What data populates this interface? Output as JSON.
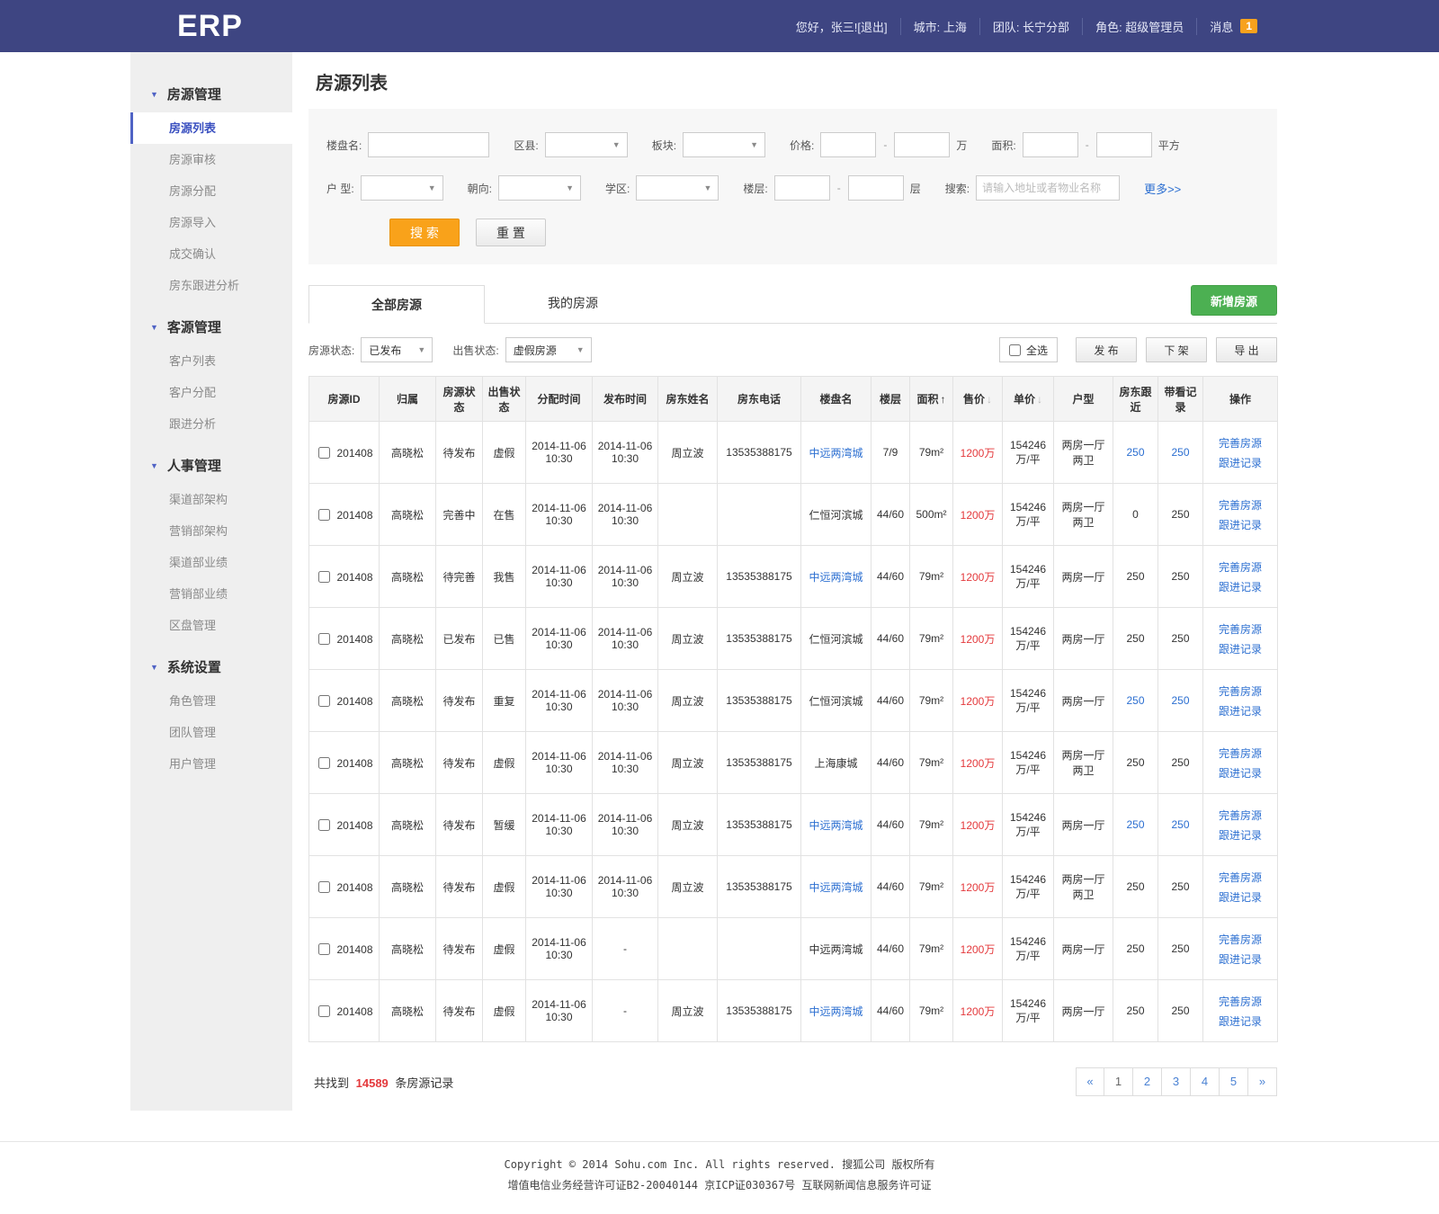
{
  "colors": {
    "navbar_bg": "#3e4582",
    "accent_orange": "#f8a21d",
    "accent_green": "#4cb052",
    "link_blue": "#2c6fd1",
    "price_red": "#e4393c",
    "sidebar_bg": "#efefef"
  },
  "navbar": {
    "logo": "ERP",
    "greeting": "您好，张三![退出]",
    "city": "城市: 上海",
    "team": "团队: 长宁分部",
    "role": "角色: 超级管理员",
    "message_label": "消息",
    "message_count": "1"
  },
  "sidebar": {
    "sections": [
      {
        "title": "房源管理",
        "items": [
          {
            "label": "房源列表",
            "active": true
          },
          {
            "label": "房源审核"
          },
          {
            "label": "房源分配"
          },
          {
            "label": "房源导入"
          },
          {
            "label": "成交确认"
          },
          {
            "label": "房东跟进分析"
          }
        ]
      },
      {
        "title": "客源管理",
        "items": [
          {
            "label": "客户列表"
          },
          {
            "label": "客户分配"
          },
          {
            "label": "跟进分析"
          }
        ]
      },
      {
        "title": "人事管理",
        "items": [
          {
            "label": "渠道部架构"
          },
          {
            "label": "营销部架构"
          },
          {
            "label": "渠道部业绩"
          },
          {
            "label": "营销部业绩"
          },
          {
            "label": "区盘管理"
          }
        ]
      },
      {
        "title": "系统设置",
        "items": [
          {
            "label": "角色管理"
          },
          {
            "label": "团队管理"
          },
          {
            "label": "用户管理"
          }
        ]
      }
    ]
  },
  "page_title": "房源列表",
  "search": {
    "range_sep": "-",
    "row1": {
      "building_label": "楼盘名:",
      "district_label": "区县:",
      "block_label": "板块:",
      "price_label": "价格:",
      "price_unit": "万",
      "area_label": "面积:",
      "area_unit": "平方"
    },
    "row2": {
      "layout_label": "户 型:",
      "orientation_label": "朝向:",
      "school_label": "学区:",
      "floor_label": "楼层:",
      "floor_unit": "层",
      "keyword_label": "搜索:",
      "keyword_placeholder": "请输入地址或者物业名称",
      "more_link": "更多>>"
    },
    "search_button": "搜 索",
    "reset_button": "重 置"
  },
  "tabs": [
    {
      "label": "全部房源",
      "active": true
    },
    {
      "label": "我的房源",
      "active": false
    }
  ],
  "add_button": "新增房源",
  "filters": {
    "status_label": "房源状态:",
    "status_value": "已发布",
    "sale_label": "出售状态:",
    "sale_value": "虚假房源",
    "select_all": "全选",
    "publish_button": "发 布",
    "offline_button": "下 架",
    "export_button": "导 出"
  },
  "table": {
    "headers": [
      {
        "label": "房源ID"
      },
      {
        "label": "归属"
      },
      {
        "label": "房源状态"
      },
      {
        "label": "出售状态"
      },
      {
        "label": "分配时间"
      },
      {
        "label": "发布时间"
      },
      {
        "label": "房东姓名"
      },
      {
        "label": "房东电话"
      },
      {
        "label": "楼盘名"
      },
      {
        "label": "楼层"
      },
      {
        "label": "面积",
        "sort": "up"
      },
      {
        "label": "售价",
        "sort": "down"
      },
      {
        "label": "单价",
        "sort": "down"
      },
      {
        "label": "户型"
      },
      {
        "label": "房东跟近"
      },
      {
        "label": "带看记录"
      },
      {
        "label": "操作"
      }
    ],
    "action_links": [
      "完善房源",
      "跟进记录"
    ],
    "rows": [
      {
        "id": "201408",
        "owner": "高晓松",
        "status": "待发布",
        "sale_status": "虚假",
        "assign_time": "2014-11-06\n10:30",
        "publish_time": "2014-11-06\n10:30",
        "landlord": "周立波",
        "phone": "13535388175",
        "building": "中远两湾城",
        "building_link": true,
        "floor": "7/9",
        "area": "79m²",
        "price": "1200万",
        "unit_price": "154246\n万/平",
        "layout": "两房一厅\n两卫",
        "follow": "250",
        "follow_link": true,
        "views": "250",
        "views_link": true
      },
      {
        "id": "201408",
        "owner": "高晓松",
        "status": "完善中",
        "sale_status": "在售",
        "assign_time": "2014-11-06\n10:30",
        "publish_time": "2014-11-06\n10:30",
        "landlord": "",
        "phone": "",
        "building": "仁恒河滨城",
        "building_link": false,
        "floor": "44/60",
        "area": "500m²",
        "price": "1200万",
        "unit_price": "154246\n万/平",
        "layout": "两房一厅\n两卫",
        "follow": "0",
        "follow_link": false,
        "views": "250",
        "views_link": false
      },
      {
        "id": "201408",
        "owner": "高晓松",
        "status": "待完善",
        "sale_status": "我售",
        "assign_time": "2014-11-06\n10:30",
        "publish_time": "2014-11-06\n10:30",
        "landlord": "周立波",
        "phone": "13535388175",
        "building": "中远两湾城",
        "building_link": true,
        "floor": "44/60",
        "area": "79m²",
        "price": "1200万",
        "unit_price": "154246\n万/平",
        "layout": "两房一厅",
        "follow": "250",
        "follow_link": false,
        "views": "250",
        "views_link": false
      },
      {
        "id": "201408",
        "owner": "高晓松",
        "status": "已发布",
        "sale_status": "已售",
        "assign_time": "2014-11-06\n10:30",
        "publish_time": "2014-11-06\n10:30",
        "landlord": "周立波",
        "phone": "13535388175",
        "building": "仁恒河滨城",
        "building_link": false,
        "floor": "44/60",
        "area": "79m²",
        "price": "1200万",
        "unit_price": "154246\n万/平",
        "layout": "两房一厅",
        "follow": "250",
        "follow_link": false,
        "views": "250",
        "views_link": false
      },
      {
        "id": "201408",
        "owner": "高晓松",
        "status": "待发布",
        "sale_status": "重复",
        "assign_time": "2014-11-06\n10:30",
        "publish_time": "2014-11-06\n10:30",
        "landlord": "周立波",
        "phone": "13535388175",
        "building": "仁恒河滨城",
        "building_link": false,
        "floor": "44/60",
        "area": "79m²",
        "price": "1200万",
        "unit_price": "154246\n万/平",
        "layout": "两房一厅",
        "follow": "250",
        "follow_link": true,
        "views": "250",
        "views_link": true
      },
      {
        "id": "201408",
        "owner": "高晓松",
        "status": "待发布",
        "sale_status": "虚假",
        "assign_time": "2014-11-06\n10:30",
        "publish_time": "2014-11-06\n10:30",
        "landlord": "周立波",
        "phone": "13535388175",
        "building": "上海康城",
        "building_link": false,
        "floor": "44/60",
        "area": "79m²",
        "price": "1200万",
        "unit_price": "154246\n万/平",
        "layout": "两房一厅\n两卫",
        "follow": "250",
        "follow_link": false,
        "views": "250",
        "views_link": false
      },
      {
        "id": "201408",
        "owner": "高晓松",
        "status": "待发布",
        "sale_status": "暂缓",
        "assign_time": "2014-11-06\n10:30",
        "publish_time": "2014-11-06\n10:30",
        "landlord": "周立波",
        "phone": "13535388175",
        "building": "中远两湾城",
        "building_link": true,
        "floor": "44/60",
        "area": "79m²",
        "price": "1200万",
        "unit_price": "154246\n万/平",
        "layout": "两房一厅",
        "follow": "250",
        "follow_link": true,
        "views": "250",
        "views_link": true
      },
      {
        "id": "201408",
        "owner": "高晓松",
        "status": "待发布",
        "sale_status": "虚假",
        "assign_time": "2014-11-06\n10:30",
        "publish_time": "2014-11-06\n10:30",
        "landlord": "周立波",
        "phone": "13535388175",
        "building": "中远两湾城",
        "building_link": true,
        "floor": "44/60",
        "area": "79m²",
        "price": "1200万",
        "unit_price": "154246\n万/平",
        "layout": "两房一厅\n两卫",
        "follow": "250",
        "follow_link": false,
        "views": "250",
        "views_link": false
      },
      {
        "id": "201408",
        "owner": "高晓松",
        "status": "待发布",
        "sale_status": "虚假",
        "assign_time": "2014-11-06\n10:30",
        "publish_time": "-",
        "landlord": "",
        "phone": "",
        "building": "中远两湾城",
        "building_link": false,
        "floor": "44/60",
        "area": "79m²",
        "price": "1200万",
        "unit_price": "154246\n万/平",
        "layout": "两房一厅",
        "follow": "250",
        "follow_link": false,
        "views": "250",
        "views_link": false
      },
      {
        "id": "201408",
        "owner": "高晓松",
        "status": "待发布",
        "sale_status": "虚假",
        "assign_time": "2014-11-06\n10:30",
        "publish_time": "-",
        "landlord": "周立波",
        "phone": "13535388175",
        "building": "中远两湾城",
        "building_link": true,
        "floor": "44/60",
        "area": "79m²",
        "price": "1200万",
        "unit_price": "154246\n万/平",
        "layout": "两房一厅",
        "follow": "250",
        "follow_link": false,
        "views": "250",
        "views_link": false
      }
    ]
  },
  "summary": {
    "prefix": "共找到",
    "count": "14589",
    "suffix": "条房源记录"
  },
  "pagination": [
    {
      "label": "«"
    },
    {
      "label": "1",
      "current": true
    },
    {
      "label": "2"
    },
    {
      "label": "3"
    },
    {
      "label": "4"
    },
    {
      "label": "5"
    },
    {
      "label": "»"
    }
  ],
  "footer": {
    "line1": "Copyright © 2014 Sohu.com Inc. All rights reserved. 搜狐公司 版权所有",
    "line2": "增值电信业务经营许可证B2-20040144 京ICP证030367号 互联网新闻信息服务许可证"
  }
}
